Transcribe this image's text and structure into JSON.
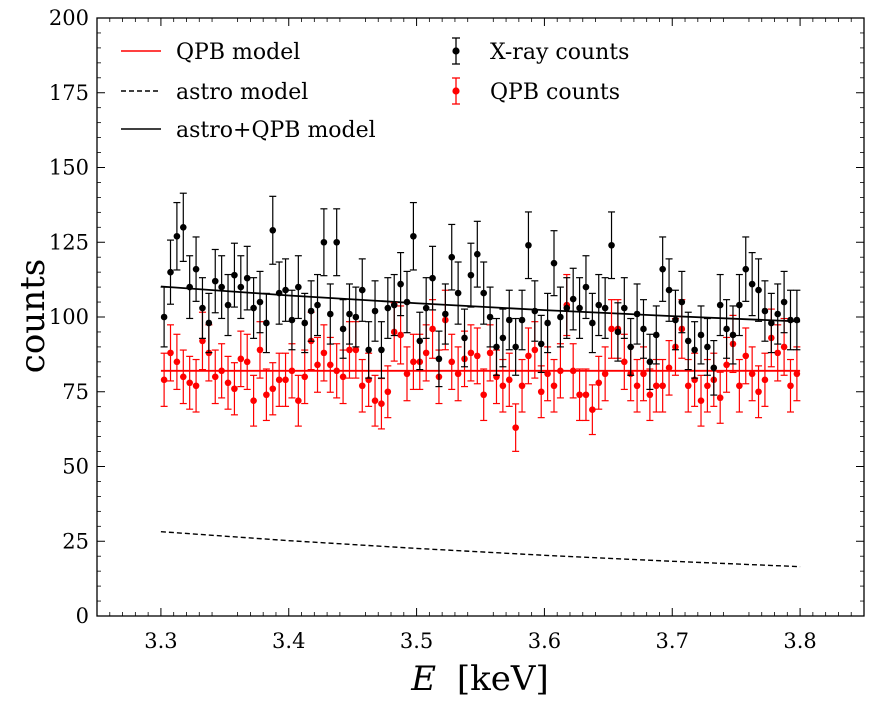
{
  "chart_data": {
    "type": "scatter",
    "title": "",
    "xlabel": "E [keV]",
    "xlabel_var": "E",
    "xlabel_unit": "[keV]",
    "ylabel": "counts",
    "xlim": [
      3.25,
      3.85
    ],
    "ylim": [
      0,
      200
    ],
    "x_ticks": [
      3.3,
      3.4,
      3.5,
      3.6,
      3.7,
      3.8
    ],
    "x_tick_labels": [
      "3.3",
      "3.4",
      "3.5",
      "3.6",
      "3.7",
      "3.8"
    ],
    "y_ticks": [
      0,
      25,
      50,
      75,
      100,
      125,
      150,
      175,
      200
    ],
    "y_tick_labels": [
      "0",
      "25",
      "50",
      "75",
      "100",
      "125",
      "150",
      "175",
      "200"
    ],
    "grid": false,
    "legend_position": "top-left",
    "colors": {
      "qpb": "#ff0000",
      "xray": "#000000",
      "astro": "#000000"
    },
    "lines": [
      {
        "name": "QPB model",
        "style": "solid",
        "color": "#ff0000",
        "x": [
          3.3,
          3.8
        ],
        "y": [
          82,
          82
        ]
      },
      {
        "name": "astro model",
        "style": "dashed",
        "color": "#000000",
        "x": [
          3.3,
          3.4,
          3.5,
          3.6,
          3.7,
          3.8
        ],
        "y": [
          28.2,
          25.2,
          22.6,
          20.3,
          18.3,
          16.5
        ]
      },
      {
        "name": "astro+QPB model",
        "style": "solid",
        "color": "#000000",
        "x": [
          3.3,
          3.4,
          3.5,
          3.6,
          3.7,
          3.8
        ],
        "y": [
          110.2,
          107.2,
          104.6,
          102.3,
          100.3,
          98.5
        ]
      }
    ],
    "series": [
      {
        "name": "X-ray counts",
        "color": "#000000",
        "x_start": 3.3025,
        "x_step": 0.005,
        "y": [
          100,
          115,
          127,
          130,
          110,
          116,
          103,
          98,
          112,
          110,
          104,
          114,
          110,
          113,
          103,
          105,
          98,
          129,
          108,
          109,
          99,
          110,
          98,
          102,
          104,
          125,
          101,
          125,
          96,
          101,
          100,
          109,
          89,
          102,
          89,
          103,
          104,
          111,
          105,
          127,
          92,
          103,
          113,
          86,
          101,
          120,
          108,
          93,
          114,
          121,
          108,
          100,
          90,
          93,
          99,
          90,
          99,
          124,
          102,
          91,
          98,
          118,
          100,
          103,
          106,
          103,
          110,
          98,
          104,
          103,
          124,
          95,
          103,
          90,
          101,
          96,
          85,
          94,
          116,
          109,
          99,
          105,
          92,
          89,
          94,
          90,
          83,
          104,
          96,
          94,
          104,
          116,
          111,
          109,
          102,
          98,
          101,
          105,
          99,
          99
        ]
      },
      {
        "name": "QPB counts",
        "color": "#ff0000",
        "x_start": 3.3025,
        "x_step": 0.005,
        "y": [
          79,
          88,
          85,
          80,
          78,
          77,
          92,
          88,
          80,
          82,
          78,
          76,
          86,
          85,
          72,
          89,
          74,
          76,
          79,
          79,
          82,
          72,
          80,
          92,
          84,
          88,
          84,
          82,
          80,
          89,
          89,
          77,
          79,
          72,
          71,
          75,
          95,
          94,
          81,
          85,
          85,
          88,
          96,
          80,
          99,
          85,
          81,
          86,
          88,
          87,
          74,
          88,
          80,
          77,
          79,
          63,
          77,
          87,
          89,
          75,
          81,
          77,
          82,
          104,
          82,
          74,
          74,
          69,
          78,
          81,
          96,
          96,
          85,
          81,
          77,
          81,
          74,
          77,
          77,
          83,
          90,
          96,
          77,
          79,
          72,
          77,
          79,
          73,
          84,
          91,
          77,
          87,
          81,
          75,
          79,
          93,
          88,
          90,
          77,
          81
        ]
      }
    ]
  }
}
